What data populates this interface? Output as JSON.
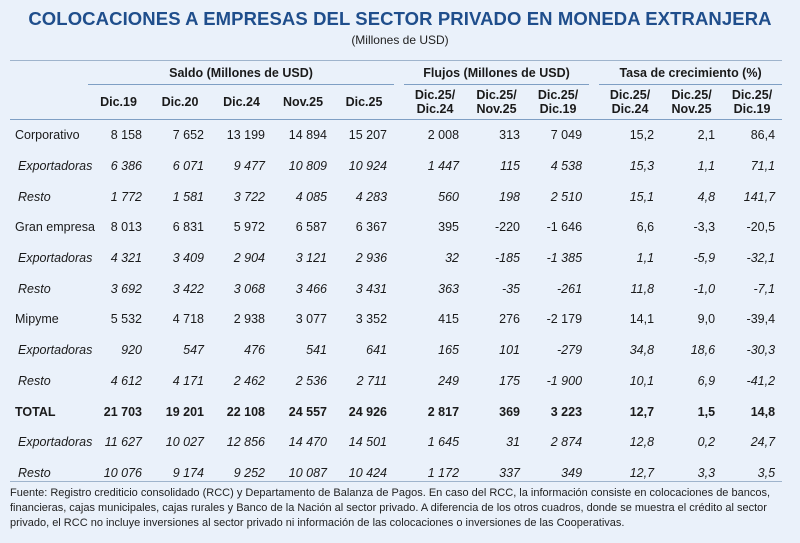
{
  "title": "COLOCACIONES A EMPRESAS DEL SECTOR PRIVADO EN MONEDA EXTRANJERA",
  "subtitle": "(Millones de USD)",
  "groups": {
    "saldo": "Saldo (Millones de USD)",
    "flujos": "Flujos (Millones de USD)",
    "tasa": "Tasa de crecimiento (%)"
  },
  "columns": {
    "saldo": [
      "Dic.19",
      "Dic.20",
      "Dic.24",
      "Nov.25",
      "Dic.25"
    ],
    "flujos": [
      [
        "Dic.25/",
        "Dic.24"
      ],
      [
        "Dic.25/",
        "Nov.25"
      ],
      [
        "Dic.25/",
        "Dic.19"
      ]
    ],
    "tasa": [
      [
        "Dic.25/",
        "Dic.24"
      ],
      [
        "Dic.25/",
        "Nov.25"
      ],
      [
        "Dic.25/",
        "Dic.19"
      ]
    ]
  },
  "rows": [
    {
      "label": "Corporativo",
      "style": "normal",
      "values": [
        "8 158",
        "7 652",
        "13 199",
        "14 894",
        "15 207",
        "2 008",
        "313",
        "7 049",
        "15,2",
        "2,1",
        "86,4"
      ]
    },
    {
      "label": "Exportadoras",
      "style": "italic",
      "values": [
        "6 386",
        "6 071",
        "9 477",
        "10 809",
        "10 924",
        "1 447",
        "115",
        "4 538",
        "15,3",
        "1,1",
        "71,1"
      ]
    },
    {
      "label": "Resto",
      "style": "italic",
      "values": [
        "1 772",
        "1 581",
        "3 722",
        "4 085",
        "4 283",
        "560",
        "198",
        "2 510",
        "15,1",
        "4,8",
        "141,7"
      ]
    },
    {
      "label": "Gran empresa",
      "style": "normal",
      "values": [
        "8 013",
        "6 831",
        "5 972",
        "6 587",
        "6 367",
        "395",
        "-220",
        "-1 646",
        "6,6",
        "-3,3",
        "-20,5"
      ]
    },
    {
      "label": "Exportadoras",
      "style": "italic",
      "values": [
        "4 321",
        "3 409",
        "2 904",
        "3 121",
        "2 936",
        "32",
        "-185",
        "-1 385",
        "1,1",
        "-5,9",
        "-32,1"
      ]
    },
    {
      "label": "Resto",
      "style": "italic",
      "values": [
        "3 692",
        "3 422",
        "3 068",
        "3 466",
        "3 431",
        "363",
        "-35",
        "-261",
        "11,8",
        "-1,0",
        "-7,1"
      ]
    },
    {
      "label": "Mipyme",
      "style": "normal",
      "values": [
        "5 532",
        "4 718",
        "2 938",
        "3 077",
        "3 352",
        "415",
        "276",
        "-2 179",
        "14,1",
        "9,0",
        "-39,4"
      ]
    },
    {
      "label": "Exportadoras",
      "style": "italic",
      "values": [
        "920",
        "547",
        "476",
        "541",
        "641",
        "165",
        "101",
        "-279",
        "34,8",
        "18,6",
        "-30,3"
      ]
    },
    {
      "label": "Resto",
      "style": "italic",
      "values": [
        "4 612",
        "4 171",
        "2 462",
        "2 536",
        "2 711",
        "249",
        "175",
        "-1 900",
        "10,1",
        "6,9",
        "-41,2"
      ]
    },
    {
      "label": "TOTAL",
      "style": "bold",
      "values": [
        "21 703",
        "19 201",
        "22 108",
        "24 557",
        "24 926",
        "2 817",
        "369",
        "3 223",
        "12,7",
        "1,5",
        "14,8"
      ]
    },
    {
      "label": "Exportadoras",
      "style": "italic",
      "values": [
        "11 627",
        "10 027",
        "12 856",
        "14 470",
        "14 501",
        "1 645",
        "31",
        "2 874",
        "12,8",
        "0,2",
        "24,7"
      ]
    },
    {
      "label": "Resto",
      "style": "italic",
      "values": [
        "10 076",
        "9 174",
        "9 252",
        "10 087",
        "10 424",
        "1 172",
        "337",
        "349",
        "12,7",
        "3,3",
        "3,5"
      ]
    }
  ],
  "footnote": "Fuente: Registro crediticio consolidado (RCC) y Departamento de Balanza de Pagos. En caso del RCC, la información consiste en colocaciones de bancos, financieras, cajas municipales, cajas rurales y Banco de la Nación al sector privado. A diferencia de los otros cuadros, donde se muestra el crédito al sector privado, el RCC no incluye inversiones al sector privado ni información de las colocaciones o inversiones de las Cooperativas."
}
